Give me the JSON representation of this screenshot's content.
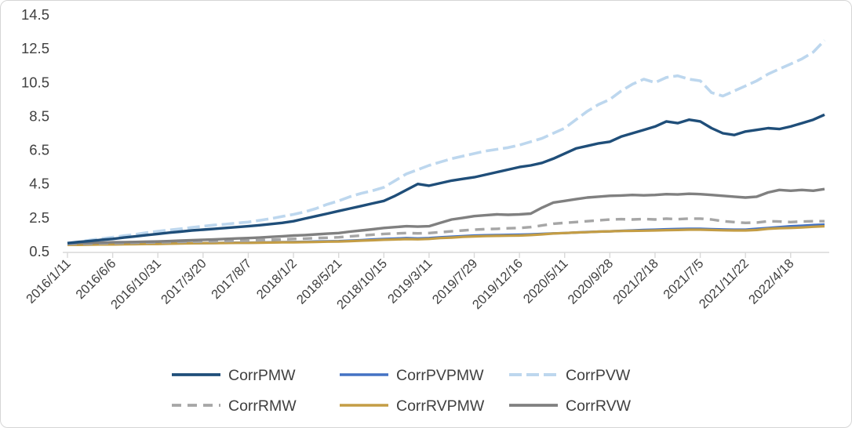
{
  "chart_data": {
    "type": "line",
    "title": "",
    "xlabel": "",
    "ylabel": "",
    "ylim": [
      0.5,
      14.5
    ],
    "y_ticks": [
      0.5,
      2.5,
      4.5,
      6.5,
      8.5,
      10.5,
      12.5,
      14.5
    ],
    "grid": false,
    "legend_position": "bottom",
    "axis_color": "#d9d9d9",
    "label_color": "#404040",
    "x_tick_labels": [
      "2016/1/11",
      "2016/6/6",
      "2016/10/31",
      "2017/3/20",
      "2017/8/7",
      "2018/1/2",
      "2018/5/21",
      "2018/10/15",
      "2019/3/11",
      "2019/7/29",
      "2019/12/16",
      "2020/5/11",
      "2020/9/28",
      "2021/2/18",
      "2021/7/5",
      "2021/11/22",
      "2022/4/18"
    ],
    "points_per_tick": 4,
    "n_points": 68,
    "series": [
      {
        "name": "CorrPVW",
        "color": "#bdd7ee",
        "dash": "16 6",
        "width": 3.6,
        "values": [
          1.0,
          1.08,
          1.18,
          1.27,
          1.35,
          1.44,
          1.52,
          1.62,
          1.7,
          1.78,
          1.85,
          1.93,
          2.0,
          2.07,
          2.12,
          2.19,
          2.25,
          2.35,
          2.45,
          2.58,
          2.7,
          2.85,
          3.05,
          3.3,
          3.5,
          3.75,
          3.95,
          4.1,
          4.3,
          4.7,
          5.1,
          5.35,
          5.6,
          5.8,
          6.0,
          6.15,
          6.3,
          6.45,
          6.55,
          6.65,
          6.8,
          7.0,
          7.2,
          7.5,
          7.8,
          8.3,
          8.8,
          9.2,
          9.5,
          10.0,
          10.4,
          10.7,
          10.5,
          10.8,
          10.9,
          10.7,
          10.6,
          9.9,
          9.7,
          10.0,
          10.3,
          10.6,
          11.0,
          11.3,
          11.6,
          11.9,
          12.3,
          13.0
        ]
      },
      {
        "name": "CorrPVPMW",
        "color": "#4472c4",
        "dash": null,
        "width": 3.2,
        "values": [
          0.92,
          0.92,
          0.93,
          0.94,
          0.94,
          0.95,
          0.96,
          0.97,
          0.97,
          0.98,
          0.99,
          1.0,
          1.0,
          1.01,
          1.02,
          1.03,
          1.03,
          1.04,
          1.05,
          1.06,
          1.07,
          1.08,
          1.1,
          1.11,
          1.12,
          1.15,
          1.18,
          1.22,
          1.25,
          1.27,
          1.3,
          1.28,
          1.3,
          1.35,
          1.38,
          1.42,
          1.45,
          1.47,
          1.48,
          1.49,
          1.5,
          1.52,
          1.55,
          1.58,
          1.6,
          1.63,
          1.66,
          1.68,
          1.7,
          1.73,
          1.75,
          1.78,
          1.8,
          1.82,
          1.84,
          1.85,
          1.85,
          1.83,
          1.81,
          1.8,
          1.8,
          1.85,
          1.9,
          1.95,
          2.0,
          2.03,
          2.07,
          2.1
        ]
      },
      {
        "name": "CorrRVPMW",
        "color": "#c49d45",
        "dash": null,
        "width": 3.2,
        "values": [
          0.9,
          0.9,
          0.91,
          0.92,
          0.92,
          0.93,
          0.94,
          0.95,
          0.95,
          0.97,
          0.98,
          0.99,
          1.0,
          1.0,
          1.01,
          1.02,
          1.02,
          1.03,
          1.04,
          1.05,
          1.05,
          1.06,
          1.07,
          1.09,
          1.1,
          1.12,
          1.15,
          1.17,
          1.2,
          1.22,
          1.24,
          1.23,
          1.25,
          1.3,
          1.33,
          1.37,
          1.4,
          1.42,
          1.43,
          1.44,
          1.45,
          1.48,
          1.52,
          1.57,
          1.6,
          1.63,
          1.65,
          1.68,
          1.7,
          1.72,
          1.73,
          1.74,
          1.75,
          1.77,
          1.78,
          1.8,
          1.8,
          1.78,
          1.76,
          1.75,
          1.75,
          1.78,
          1.85,
          1.88,
          1.9,
          1.93,
          1.97,
          2.0
        ]
      },
      {
        "name": "CorrRMW",
        "color": "#a6a6a6",
        "dash": "12 8",
        "width": 3.4,
        "values": [
          0.95,
          0.96,
          0.97,
          0.99,
          1.0,
          1.01,
          1.02,
          1.04,
          1.05,
          1.06,
          1.08,
          1.09,
          1.1,
          1.11,
          1.12,
          1.14,
          1.15,
          1.17,
          1.2,
          1.22,
          1.25,
          1.27,
          1.3,
          1.32,
          1.35,
          1.4,
          1.45,
          1.5,
          1.55,
          1.57,
          1.6,
          1.58,
          1.6,
          1.65,
          1.7,
          1.75,
          1.8,
          1.83,
          1.85,
          1.88,
          1.9,
          1.95,
          2.05,
          2.15,
          2.2,
          2.25,
          2.3,
          2.35,
          2.4,
          2.42,
          2.4,
          2.43,
          2.4,
          2.45,
          2.42,
          2.45,
          2.45,
          2.4,
          2.3,
          2.25,
          2.2,
          2.22,
          2.3,
          2.28,
          2.25,
          2.28,
          2.3,
          2.3
        ]
      },
      {
        "name": "CorrRVW",
        "color": "#808080",
        "dash": null,
        "width": 3.4,
        "values": [
          1.0,
          1.01,
          1.02,
          1.04,
          1.05,
          1.06,
          1.07,
          1.09,
          1.1,
          1.12,
          1.15,
          1.17,
          1.2,
          1.22,
          1.25,
          1.28,
          1.3,
          1.33,
          1.37,
          1.41,
          1.45,
          1.48,
          1.52,
          1.56,
          1.6,
          1.68,
          1.75,
          1.82,
          1.9,
          1.95,
          2.0,
          1.98,
          2.0,
          2.2,
          2.4,
          2.5,
          2.6,
          2.65,
          2.7,
          2.68,
          2.7,
          2.75,
          3.1,
          3.4,
          3.5,
          3.6,
          3.7,
          3.75,
          3.8,
          3.82,
          3.85,
          3.83,
          3.85,
          3.9,
          3.88,
          3.92,
          3.9,
          3.85,
          3.8,
          3.75,
          3.7,
          3.75,
          4.0,
          4.15,
          4.1,
          4.15,
          4.1,
          4.2
        ]
      },
      {
        "name": "CorrPMW",
        "color": "#1f4e79",
        "dash": null,
        "width": 3.4,
        "values": [
          1.0,
          1.07,
          1.13,
          1.2,
          1.25,
          1.33,
          1.4,
          1.48,
          1.55,
          1.62,
          1.68,
          1.75,
          1.8,
          1.85,
          1.9,
          1.95,
          2.0,
          2.06,
          2.13,
          2.2,
          2.3,
          2.45,
          2.6,
          2.75,
          2.9,
          3.05,
          3.2,
          3.35,
          3.5,
          3.8,
          4.15,
          4.5,
          4.4,
          4.55,
          4.7,
          4.8,
          4.9,
          5.05,
          5.2,
          5.35,
          5.5,
          5.6,
          5.75,
          6.0,
          6.3,
          6.6,
          6.75,
          6.9,
          7.0,
          7.3,
          7.5,
          7.7,
          7.9,
          8.2,
          8.1,
          8.3,
          8.2,
          7.8,
          7.5,
          7.4,
          7.6,
          7.7,
          7.8,
          7.75,
          7.9,
          8.1,
          8.3,
          8.6
        ]
      }
    ],
    "legend_rows": [
      [
        "CorrPMW",
        "CorrPVPMW",
        "CorrPVW"
      ],
      [
        "CorrRMW",
        "CorrRVPMW",
        "CorrRVW"
      ]
    ]
  }
}
